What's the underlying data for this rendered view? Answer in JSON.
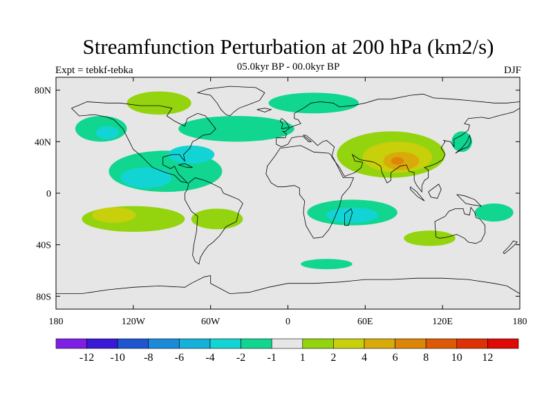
{
  "header": {
    "title": "Streamfunction Perturbation at 200 hPa (km2/s)",
    "subtitle": "05.0kyr BP - 00.0kyr BP",
    "left_string": "Expt = tebkf-tebka",
    "right_string": "DJF"
  },
  "axes": {
    "lat_ticks": [
      {
        "value": 80,
        "label": "80N"
      },
      {
        "value": 40,
        "label": "40N"
      },
      {
        "value": 0,
        "label": "0"
      },
      {
        "value": -40,
        "label": "40S"
      },
      {
        "value": -80,
        "label": "80S"
      }
    ],
    "lon_ticks": [
      {
        "value": -180,
        "label": "180"
      },
      {
        "value": -120,
        "label": "120W"
      },
      {
        "value": -60,
        "label": "60W"
      },
      {
        "value": 0,
        "label": "0"
      },
      {
        "value": 60,
        "label": "60E"
      },
      {
        "value": 120,
        "label": "120E"
      },
      {
        "value": 180,
        "label": "180"
      }
    ],
    "lon_range": [
      -180,
      180
    ],
    "lat_range": [
      -90,
      90
    ]
  },
  "colorbar": {
    "colors": [
      "#7e1fe6",
      "#3a19d6",
      "#1e55d0",
      "#1b8ad8",
      "#16b1da",
      "#13d4d4",
      "#10d690",
      "#e6e6e6",
      "#94d40e",
      "#c8cf0b",
      "#d8ab0a",
      "#dd8508",
      "#dd5906",
      "#dd3206",
      "#e00a05"
    ],
    "labels": [
      "-12",
      "-10",
      "-8",
      "-6",
      "-4",
      "-2",
      "-1",
      "1",
      "2",
      "4",
      "6",
      "8",
      "10",
      "12"
    ]
  },
  "anomalies": [
    {
      "name": "north-pacific-negative",
      "level": -1,
      "color": "#10d690",
      "lon": -145,
      "lat": 50,
      "rx": 20,
      "ry": 10
    },
    {
      "name": "north-pacific-core",
      "level": -2,
      "color": "#13d4d4",
      "lon": -140,
      "lat": 47,
      "rx": 9,
      "ry": 5
    },
    {
      "name": "tropical-pacific-negative",
      "level": -1,
      "color": "#10d690",
      "lon": -95,
      "lat": 17,
      "rx": 44,
      "ry": 16
    },
    {
      "name": "tropical-pacific-core",
      "level": -2,
      "color": "#13d4d4",
      "lon": -110,
      "lat": 12,
      "rx": 20,
      "ry": 8
    },
    {
      "name": "caribbean-core",
      "level": -2,
      "color": "#13d4d4",
      "lon": -75,
      "lat": 30,
      "rx": 18,
      "ry": 7
    },
    {
      "name": "north-atlantic-negative",
      "level": -1,
      "color": "#10d690",
      "lon": -40,
      "lat": 50,
      "rx": 45,
      "ry": 10
    },
    {
      "name": "subarctic-band-negative",
      "level": -1,
      "color": "#10d690",
      "lon": 20,
      "lat": 70,
      "rx": 35,
      "ry": 8
    },
    {
      "name": "canada-positive",
      "level": 1,
      "color": "#94d40e",
      "lon": -100,
      "lat": 70,
      "rx": 25,
      "ry": 9
    },
    {
      "name": "asia-positive",
      "level": 1,
      "color": "#94d40e",
      "lon": 80,
      "lat": 30,
      "rx": 42,
      "ry": 18
    },
    {
      "name": "asia-level-2",
      "level": 2,
      "color": "#c8cf0b",
      "lon": 85,
      "lat": 28,
      "rx": 27,
      "ry": 12
    },
    {
      "name": "asia-level-4",
      "level": 4,
      "color": "#d8ab0a",
      "lon": 88,
      "lat": 25,
      "rx": 14,
      "ry": 7
    },
    {
      "name": "asia-level-6",
      "level": 6,
      "color": "#dd8508",
      "lon": 85,
      "lat": 25,
      "rx": 5,
      "ry": 3
    },
    {
      "name": "south-pacific-positive",
      "level": 1,
      "color": "#94d40e",
      "lon": -120,
      "lat": -20,
      "rx": 40,
      "ry": 10
    },
    {
      "name": "south-pacific-level-2",
      "level": 2,
      "color": "#c8cf0b",
      "lon": -135,
      "lat": -17,
      "rx": 17,
      "ry": 6
    },
    {
      "name": "south-atlantic-positive",
      "level": 1,
      "color": "#94d40e",
      "lon": -55,
      "lat": -20,
      "rx": 20,
      "ry": 8
    },
    {
      "name": "africa-negative",
      "level": -1,
      "color": "#10d690",
      "lon": 50,
      "lat": -15,
      "rx": 35,
      "ry": 10
    },
    {
      "name": "indian-ocean-core",
      "level": -2,
      "color": "#13d4d4",
      "lon": 50,
      "lat": -17,
      "rx": 20,
      "ry": 6
    },
    {
      "name": "west-pacific-negative",
      "level": -1,
      "color": "#10d690",
      "lon": 135,
      "lat": 40,
      "rx": 8,
      "ry": 8
    },
    {
      "name": "subtropical-pacific-negative",
      "level": -1,
      "color": "#10d690",
      "lon": 160,
      "lat": -15,
      "rx": 15,
      "ry": 7
    },
    {
      "name": "australia-positive",
      "level": 1,
      "color": "#94d40e",
      "lon": 110,
      "lat": -35,
      "rx": 20,
      "ry": 6
    },
    {
      "name": "southern-ocean-negative",
      "level": -1,
      "color": "#10d690",
      "lon": 30,
      "lat": -55,
      "rx": 20,
      "ry": 4
    }
  ]
}
